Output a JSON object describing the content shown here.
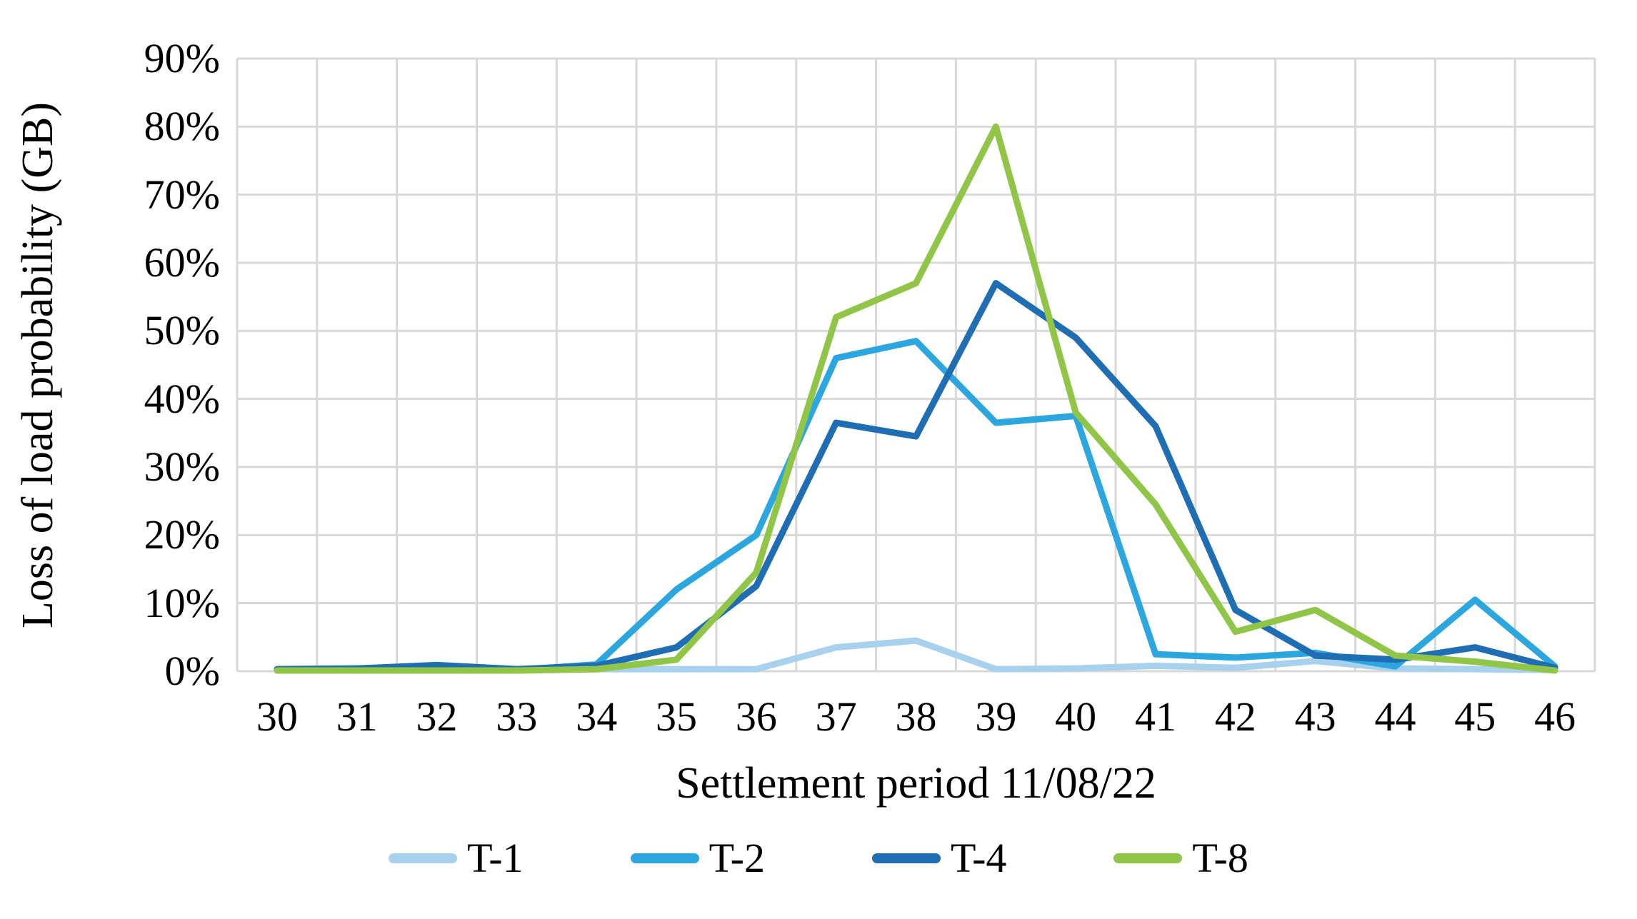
{
  "chart_data": {
    "type": "line",
    "title": "",
    "xlabel": "Settlement period 11/08/22",
    "ylabel": "Loss of load probability (GB)",
    "categories": [
      30,
      31,
      32,
      33,
      34,
      35,
      36,
      37,
      38,
      39,
      40,
      41,
      42,
      43,
      44,
      45,
      46
    ],
    "y_ticks": [
      "0%",
      "10%",
      "20%",
      "30%",
      "40%",
      "50%",
      "60%",
      "70%",
      "80%",
      "90%"
    ],
    "ylim": [
      0,
      90
    ],
    "grid": true,
    "legend_position": "bottom",
    "series": [
      {
        "name": "T-1",
        "color": "#A7D1ED",
        "values": [
          0.2,
          0.2,
          0.2,
          0.2,
          0.3,
          0.3,
          0.3,
          3.5,
          4.5,
          0.3,
          0.4,
          0.8,
          0.5,
          1.5,
          0.4,
          0.3,
          0.2
        ]
      },
      {
        "name": "T-2",
        "color": "#2BA6DE",
        "values": [
          0.2,
          0.2,
          0.3,
          0.2,
          1.0,
          12.0,
          20.0,
          46.0,
          48.5,
          36.5,
          37.5,
          2.5,
          2.0,
          2.7,
          0.7,
          10.5,
          0.7
        ]
      },
      {
        "name": "T-4",
        "color": "#1F6EB3",
        "values": [
          0.3,
          0.4,
          0.9,
          0.3,
          0.8,
          3.5,
          12.5,
          36.5,
          34.5,
          57.0,
          49.0,
          36.0,
          9.0,
          2.3,
          1.7,
          3.5,
          0.5
        ]
      },
      {
        "name": "T-8",
        "color": "#90C548",
        "values": [
          0.1,
          0.1,
          0.1,
          0.1,
          0.3,
          1.7,
          14.5,
          52.0,
          57.0,
          80.0,
          38.0,
          24.5,
          5.8,
          9.0,
          2.3,
          1.4,
          0.1
        ]
      }
    ]
  },
  "colors": {
    "gridline": "#D8D8D8",
    "text": "#000000",
    "background": "#FFFFFF"
  }
}
